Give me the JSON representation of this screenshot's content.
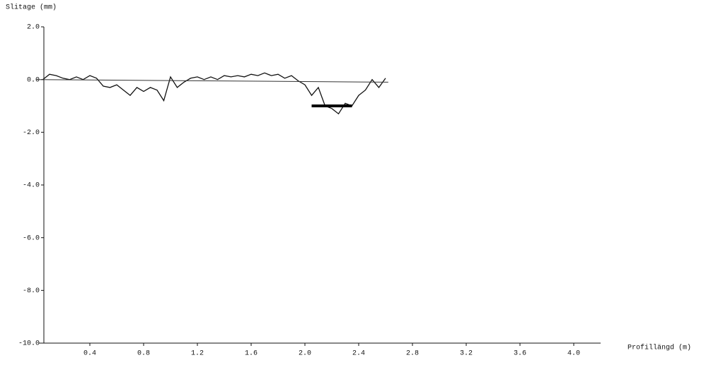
{
  "chart_data": {
    "type": "line",
    "ylabel": "Slitage (mm)",
    "xlabel": "Profillängd (m)",
    "xlim": [
      0,
      4.2
    ],
    "ylim": [
      -10,
      2
    ],
    "xticks": [
      0.4,
      0.8,
      1.2,
      1.6,
      {
        "value": 2,
        "label": "2.0"
      },
      2.4,
      2.8,
      3.2,
      3.6,
      {
        "value": 4,
        "label": "4.0"
      }
    ],
    "yticks": [
      {
        "value": 2,
        "label": "2.0"
      },
      {
        "value": 0,
        "label": "0.0"
      },
      {
        "value": -2,
        "label": "-2.0"
      },
      {
        "value": -4,
        "label": "-4.0"
      },
      {
        "value": -6,
        "label": "-6.0"
      },
      {
        "value": -8,
        "label": "-8.0"
      },
      {
        "value": -10,
        "label": "-10.0"
      }
    ],
    "series": [
      {
        "color": "#111111",
        "x": [
          0.05,
          0.1,
          0.15,
          0.2,
          0.25,
          0.3,
          0.35,
          0.4,
          0.45,
          0.5,
          0.55,
          0.6,
          0.65,
          0.7,
          0.75,
          0.8,
          0.85,
          0.9,
          0.95,
          1.0,
          1.05,
          1.1,
          1.15,
          1.2,
          1.25,
          1.3,
          1.35,
          1.4,
          1.45,
          1.5,
          1.55,
          1.6,
          1.65,
          1.7,
          1.75,
          1.8,
          1.85,
          1.9,
          1.95,
          2.0,
          2.05,
          2.1,
          2.15,
          2.2,
          2.25,
          2.3,
          2.35,
          2.4,
          2.45,
          2.5,
          2.55,
          2.6
        ],
        "values": [
          0.0,
          0.2,
          0.15,
          0.05,
          0.0,
          0.1,
          0.0,
          0.15,
          0.05,
          -0.25,
          -0.3,
          -0.2,
          -0.4,
          -0.6,
          -0.3,
          -0.45,
          -0.3,
          -0.4,
          -0.8,
          0.1,
          -0.3,
          -0.1,
          0.05,
          0.1,
          0.0,
          0.1,
          0.0,
          0.15,
          0.1,
          0.15,
          0.1,
          0.2,
          0.15,
          0.25,
          0.15,
          0.2,
          0.05,
          0.15,
          -0.05,
          -0.2,
          -0.6,
          -0.3,
          -1.0,
          -1.1,
          -1.3,
          -0.9,
          -1.0,
          -0.6,
          -0.4,
          0.0,
          -0.3,
          0.05
        ]
      },
      {
        "color": "#333333",
        "x": [
          0,
          2.62
        ],
        "values": [
          0,
          -0.1
        ]
      },
      {
        "color": "#000000",
        "x": [
          2.05,
          2.35
        ],
        "values": [
          -1.0,
          -1.0
        ]
      }
    ]
  }
}
